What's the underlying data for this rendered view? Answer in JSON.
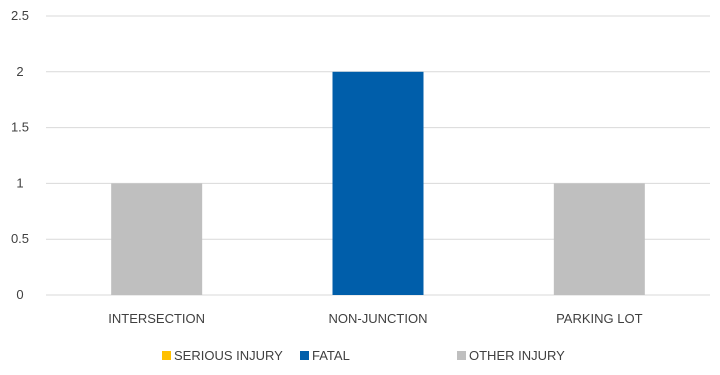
{
  "chart_data": {
    "type": "bar",
    "categories": [
      "INTERSECTION",
      "NON-JUNCTION",
      "PARKING LOT"
    ],
    "series": [
      {
        "name": "SERIOUS INJURY",
        "color": "#FFC000",
        "values": [
          0,
          0,
          0
        ]
      },
      {
        "name": "FATAL",
        "color": "#005EAA",
        "values": [
          0,
          2,
          0
        ]
      },
      {
        "name": "OTHER INJURY",
        "color": "#BFBFBF",
        "values": [
          1,
          0,
          1
        ]
      }
    ],
    "bar_values": [
      1,
      2,
      1
    ],
    "bar_series": [
      "OTHER INJURY",
      "FATAL",
      "OTHER INJURY"
    ],
    "y_ticks": [
      "0",
      "0.5",
      "1",
      "1.5",
      "2",
      "2.5"
    ],
    "ylim": [
      0,
      2.5
    ],
    "grid": true,
    "legend_position": "bottom",
    "title": "",
    "xlabel": "",
    "ylabel": ""
  }
}
